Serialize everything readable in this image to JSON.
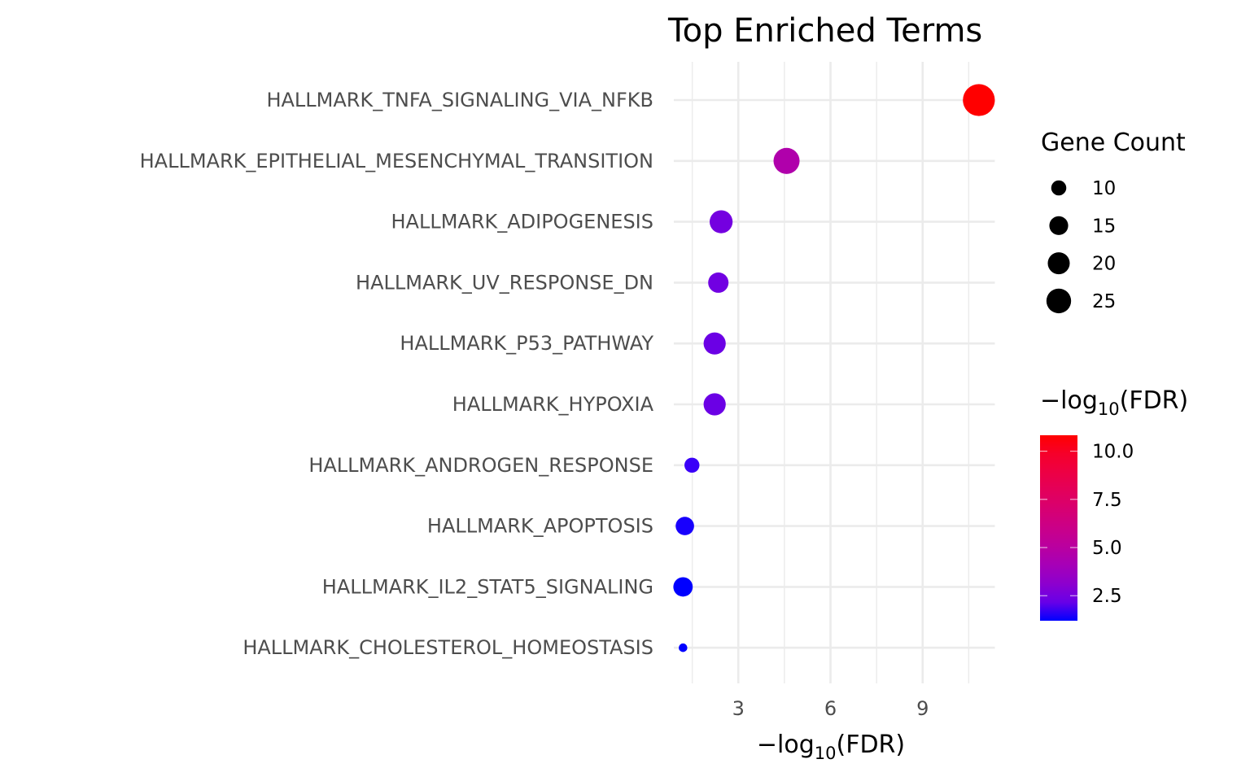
{
  "chart_data": {
    "type": "scatter",
    "title": "Top Enriched Terms",
    "xlabel": "-log10(FDR)",
    "ylabel": "",
    "xlim": [
      0.9,
      11.35
    ],
    "x_ticks": [
      3,
      6,
      9
    ],
    "grid": true,
    "categories": [
      "HALLMARK_TNFA_SIGNALING_VIA_NFKB",
      "HALLMARK_EPITHELIAL_MESENCHYMAL_TRANSITION",
      "HALLMARK_ADIPOGENESIS",
      "HALLMARK_UV_RESPONSE_DN",
      "HALLMARK_P53_PATHWAY",
      "HALLMARK_HYPOXIA",
      "HALLMARK_ANDROGEN_RESPONSE",
      "HALLMARK_APOPTOSIS",
      "HALLMARK_IL2_STAT5_SIGNALING",
      "HALLMARK_CHOLESTEROL_HOMEOSTASIS"
    ],
    "x": [
      10.83,
      4.57,
      2.44,
      2.35,
      2.23,
      2.23,
      1.49,
      1.26,
      1.2,
      1.2
    ],
    "gene_count": [
      28,
      19,
      15,
      12,
      14,
      14,
      7,
      10,
      11,
      3
    ],
    "size_legend": {
      "title": "Gene Count",
      "breaks": [
        10,
        15,
        20,
        25
      ],
      "position": "right"
    },
    "color_legend": {
      "title": "-log10(FDR)",
      "breaks": [
        2.5,
        5.0,
        7.5,
        10.0
      ],
      "break_labels": [
        "2.5",
        "5.0",
        "7.5",
        "10.0"
      ],
      "low_color": "#0000FF",
      "high_color": "#FF0000",
      "position": "right"
    }
  }
}
